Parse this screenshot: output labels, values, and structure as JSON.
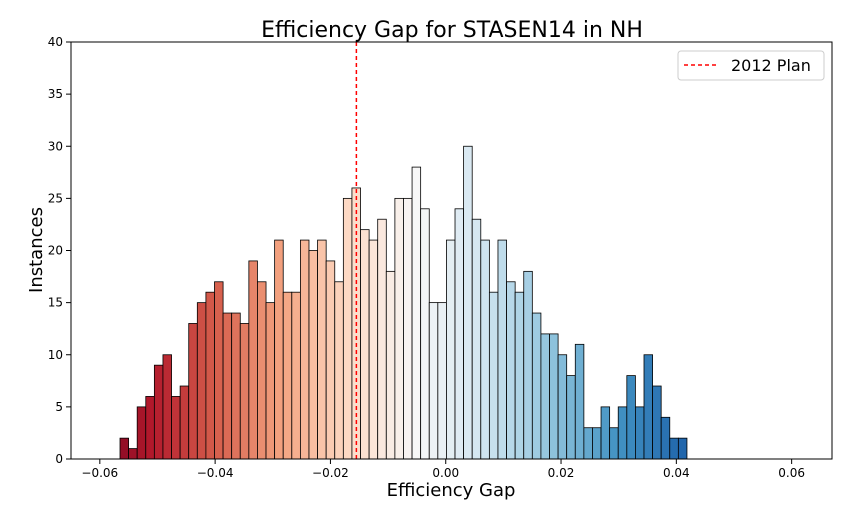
{
  "chart_data": {
    "type": "bar",
    "title": "Efficiency Gap for STASEN14 in NH",
    "xlabel": "Efficiency Gap",
    "ylabel": "Instances",
    "xlim": [
      -0.065,
      0.067
    ],
    "ylim": [
      0,
      40
    ],
    "xticks": [
      -0.06,
      -0.04,
      -0.02,
      0.0,
      0.02,
      0.04,
      0.06
    ],
    "xtick_labels": [
      "−0.06",
      "−0.04",
      "−0.02",
      "0.00",
      "0.02",
      "0.04",
      "0.06"
    ],
    "yticks": [
      0,
      5,
      10,
      15,
      20,
      25,
      30,
      35,
      40
    ],
    "ytick_labels": [
      "0",
      "5",
      "10",
      "15",
      "20",
      "25",
      "30",
      "35",
      "40"
    ],
    "bin_start": -0.0565,
    "bin_width": 0.00149,
    "values": [
      2,
      1,
      5,
      6,
      9,
      10,
      6,
      7,
      13,
      15,
      16,
      17,
      14,
      14,
      13,
      19,
      17,
      15,
      21,
      16,
      16,
      21,
      20,
      21,
      19,
      17,
      25,
      26,
      22,
      21,
      23,
      18,
      25,
      25,
      28,
      24,
      15,
      15,
      21,
      24,
      30,
      23,
      21,
      16,
      21,
      17,
      16,
      18,
      14,
      12,
      12,
      10,
      8,
      11,
      3,
      3,
      5,
      3,
      5,
      8,
      5,
      10,
      7,
      4,
      2,
      2
    ],
    "colormap": "RdBu",
    "grid": false,
    "legend": {
      "position": "upper right",
      "entries": [
        {
          "label": "2012 Plan",
          "style": "dashed",
          "color": "#ff0000"
        }
      ]
    },
    "reference_line": {
      "x": -0.0155,
      "label": "2012 Plan",
      "color": "#ff0000"
    }
  }
}
